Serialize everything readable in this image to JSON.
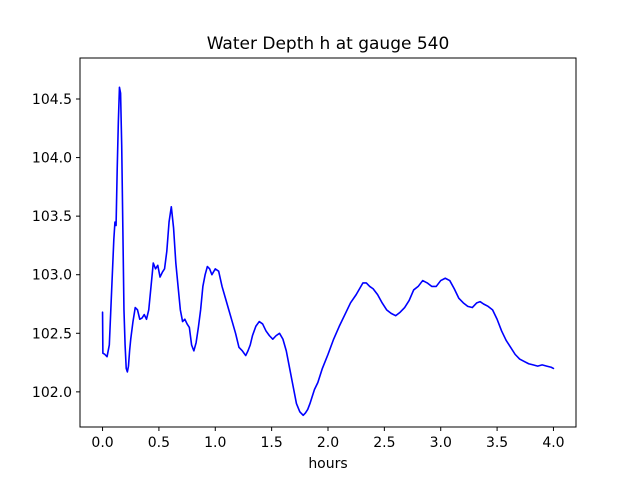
{
  "chart_data": {
    "type": "line",
    "title": "Water Depth h at gauge 540",
    "xlabel": "hours",
    "ylabel": "",
    "xlim": [
      -0.2,
      4.2
    ],
    "ylim": [
      101.7,
      104.85
    ],
    "xticks": [
      0.0,
      0.5,
      1.0,
      1.5,
      2.0,
      2.5,
      3.0,
      3.5,
      4.0
    ],
    "xtick_labels": [
      "0.0",
      "0.5",
      "1.0",
      "1.5",
      "2.0",
      "2.5",
      "3.0",
      "3.5",
      "4.0"
    ],
    "yticks": [
      102.0,
      102.5,
      103.0,
      103.5,
      104.0,
      104.5
    ],
    "ytick_labels": [
      "102.0",
      "102.5",
      "103.0",
      "103.5",
      "104.0",
      "104.5"
    ],
    "grid": false,
    "series": [
      {
        "color": "#0000ff",
        "x": [
          0.0,
          0.003,
          0.02,
          0.04,
          0.06,
          0.08,
          0.1,
          0.11,
          0.12,
          0.13,
          0.14,
          0.15,
          0.16,
          0.17,
          0.18,
          0.19,
          0.2,
          0.21,
          0.22,
          0.23,
          0.24,
          0.25,
          0.27,
          0.29,
          0.31,
          0.33,
          0.35,
          0.37,
          0.39,
          0.41,
          0.43,
          0.45,
          0.47,
          0.49,
          0.51,
          0.53,
          0.55,
          0.57,
          0.59,
          0.61,
          0.63,
          0.65,
          0.67,
          0.69,
          0.71,
          0.73,
          0.75,
          0.77,
          0.79,
          0.81,
          0.83,
          0.85,
          0.87,
          0.89,
          0.91,
          0.93,
          0.95,
          0.97,
          1.0,
          1.03,
          1.06,
          1.09,
          1.12,
          1.15,
          1.18,
          1.21,
          1.24,
          1.27,
          1.29,
          1.31,
          1.33,
          1.36,
          1.39,
          1.42,
          1.45,
          1.48,
          1.51,
          1.54,
          1.57,
          1.6,
          1.63,
          1.66,
          1.69,
          1.72,
          1.75,
          1.78,
          1.8,
          1.82,
          1.84,
          1.86,
          1.88,
          1.91,
          1.95,
          2.0,
          2.05,
          2.1,
          2.15,
          2.2,
          2.25,
          2.28,
          2.31,
          2.34,
          2.37,
          2.4,
          2.44,
          2.48,
          2.52,
          2.56,
          2.6,
          2.64,
          2.68,
          2.72,
          2.76,
          2.8,
          2.84,
          2.88,
          2.92,
          2.96,
          3.0,
          3.04,
          3.08,
          3.12,
          3.16,
          3.2,
          3.24,
          3.28,
          3.32,
          3.35,
          3.38,
          3.42,
          3.46,
          3.5,
          3.54,
          3.58,
          3.62,
          3.66,
          3.7,
          3.74,
          3.78,
          3.82,
          3.86,
          3.9,
          3.94,
          3.98,
          4.0
        ],
        "y": [
          102.68,
          102.33,
          102.32,
          102.3,
          102.4,
          102.85,
          103.3,
          103.45,
          103.42,
          103.9,
          104.3,
          104.6,
          104.55,
          104.1,
          103.4,
          102.7,
          102.4,
          102.2,
          102.17,
          102.22,
          102.35,
          102.45,
          102.6,
          102.72,
          102.7,
          102.62,
          102.63,
          102.66,
          102.62,
          102.7,
          102.9,
          103.1,
          103.05,
          103.08,
          102.98,
          103.02,
          103.05,
          103.2,
          103.45,
          103.58,
          103.4,
          103.1,
          102.9,
          102.7,
          102.6,
          102.62,
          102.58,
          102.55,
          102.4,
          102.35,
          102.42,
          102.55,
          102.7,
          102.9,
          103.0,
          103.07,
          103.05,
          103.0,
          103.05,
          103.03,
          102.9,
          102.8,
          102.7,
          102.6,
          102.5,
          102.38,
          102.35,
          102.31,
          102.35,
          102.4,
          102.48,
          102.56,
          102.6,
          102.58,
          102.52,
          102.48,
          102.45,
          102.48,
          102.5,
          102.45,
          102.35,
          102.2,
          102.05,
          101.9,
          101.83,
          101.8,
          101.82,
          101.85,
          101.9,
          101.96,
          102.02,
          102.08,
          102.2,
          102.32,
          102.45,
          102.56,
          102.66,
          102.76,
          102.83,
          102.88,
          102.93,
          102.93,
          102.9,
          102.88,
          102.83,
          102.76,
          102.7,
          102.67,
          102.65,
          102.68,
          102.72,
          102.78,
          102.87,
          102.9,
          102.95,
          102.93,
          102.9,
          102.9,
          102.95,
          102.97,
          102.95,
          102.88,
          102.8,
          102.76,
          102.73,
          102.72,
          102.76,
          102.77,
          102.75,
          102.73,
          102.7,
          102.62,
          102.52,
          102.44,
          102.38,
          102.32,
          102.28,
          102.26,
          102.24,
          102.23,
          102.22,
          102.23,
          102.22,
          102.21,
          102.2
        ]
      }
    ]
  }
}
